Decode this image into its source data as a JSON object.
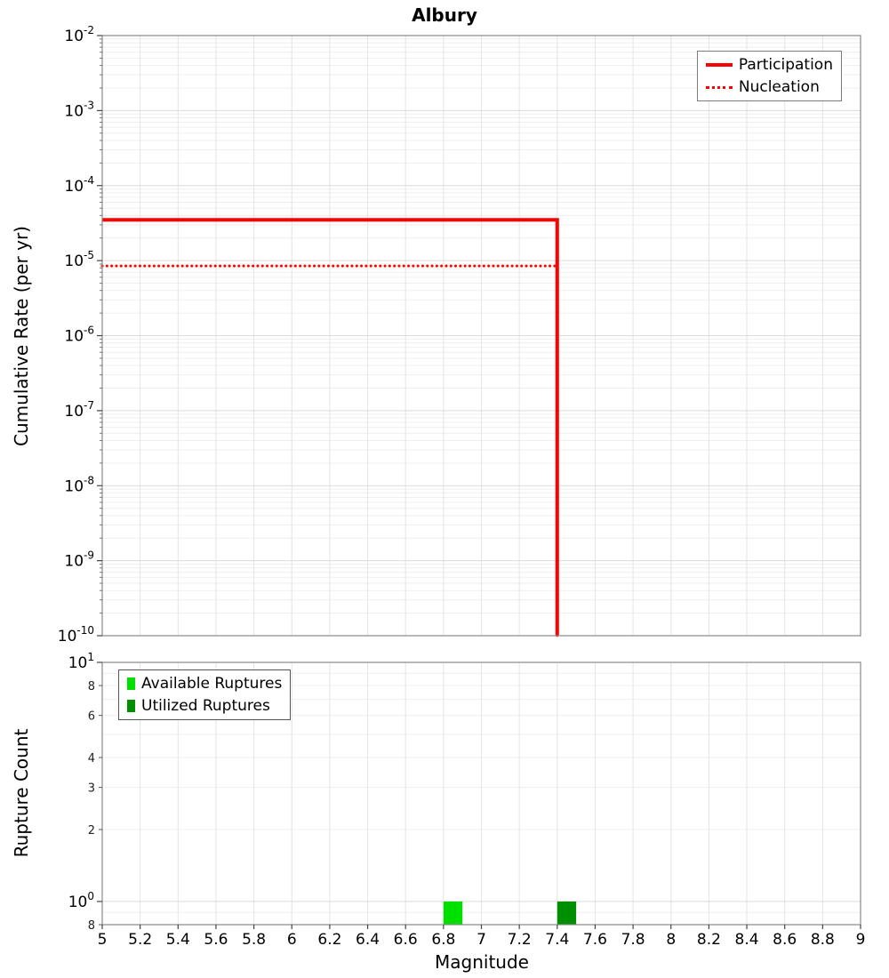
{
  "title": "Albury",
  "x_axis": {
    "label": "Magnitude",
    "tick_labels": [
      "5",
      "5.2",
      "5.4",
      "5.6",
      "5.8",
      "6",
      "6.2",
      "6.4",
      "6.6",
      "6.8",
      "7",
      "7.2",
      "7.4",
      "7.6",
      "7.8",
      "8",
      "8.2",
      "8.4",
      "8.6",
      "8.8",
      "9"
    ]
  },
  "chart_data": [
    {
      "type": "line",
      "title": "Albury",
      "ylabel": "Cumulative Rate (per yr)",
      "xlabel": "Magnitude",
      "xlim": [
        5,
        9
      ],
      "ylim": [
        1e-10,
        0.01
      ],
      "yscale": "log",
      "grid": true,
      "legend_position": "top-right",
      "series": [
        {
          "name": "Participation",
          "color": "#ff0000",
          "style": "solid",
          "line_width": 4,
          "points": [
            [
              5,
              3.5e-05
            ],
            [
              7.4,
              3.5e-05
            ],
            [
              7.4,
              1e-10
            ]
          ]
        },
        {
          "name": "Nucleation",
          "color": "#ff0000",
          "style": "dotted",
          "line_width": 3,
          "points": [
            [
              5,
              8.5e-06
            ],
            [
              7.4,
              8.5e-06
            ],
            [
              7.4,
              1e-10
            ]
          ]
        }
      ]
    },
    {
      "type": "bar",
      "ylabel": "Rupture Count",
      "xlabel": "Magnitude",
      "xlim": [
        5,
        9
      ],
      "ylim": [
        0.8,
        10
      ],
      "yscale": "log",
      "grid": true,
      "legend_position": "top-left",
      "bar_width": 0.1,
      "y_major_ticks": [
        {
          "v": 10,
          "exp": 1
        },
        {
          "v": 1,
          "exp": 0
        }
      ],
      "y_minor_tick_labels": [
        {
          "v": 8,
          "label": "8"
        },
        {
          "v": 6,
          "label": "6"
        },
        {
          "v": 4,
          "label": "4"
        },
        {
          "v": 3,
          "label": "3"
        },
        {
          "v": 2,
          "label": "2"
        },
        {
          "v": 0.8,
          "label": "8"
        }
      ],
      "series": [
        {
          "name": "Available Ruptures",
          "color": "#00e000",
          "bars": [
            {
              "x": 6.85,
              "count": 1
            }
          ]
        },
        {
          "name": "Utilized Ruptures",
          "color": "#008f00",
          "bars": [
            {
              "x": 7.45,
              "count": 1
            }
          ]
        }
      ]
    }
  ]
}
